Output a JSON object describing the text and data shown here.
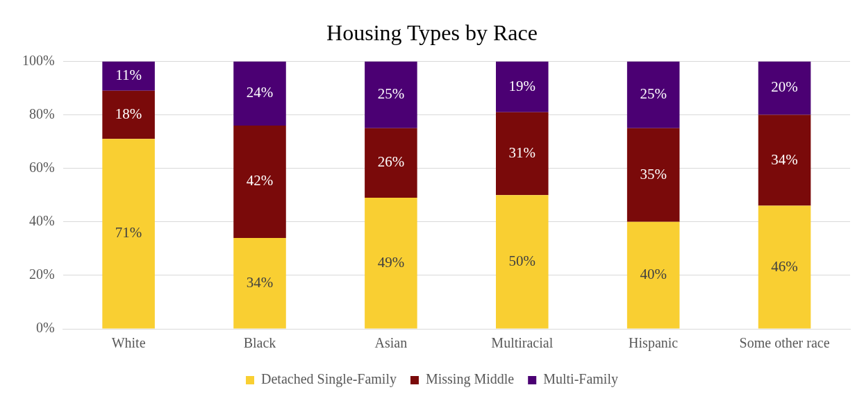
{
  "chart_data": {
    "type": "bar",
    "title": "Housing Types by Race",
    "stacked": true,
    "grid": "y",
    "legend": "bottom",
    "categories": [
      "White",
      "Black",
      "Asian",
      "Multiracial",
      "Hispanic",
      "Some other race"
    ],
    "ylim": [
      0,
      100
    ],
    "yticks": [
      {
        "value": 0,
        "label": "0%"
      },
      {
        "value": 20,
        "label": "20%"
      },
      {
        "value": 40,
        "label": "40%"
      },
      {
        "value": 60,
        "label": "60%"
      },
      {
        "value": 80,
        "label": "80%"
      },
      {
        "value": 100,
        "label": "100%"
      }
    ],
    "series": [
      {
        "name": "Detached Single-Family",
        "color": "#f9cf32",
        "values": [
          71,
          34,
          49,
          50,
          40,
          46
        ],
        "value_labels": [
          "71%",
          "34%",
          "49%",
          "50%",
          "40%",
          "46%"
        ]
      },
      {
        "name": "Missing Middle",
        "color": "#7a0a0a",
        "values": [
          18,
          42,
          26,
          31,
          35,
          34
        ],
        "value_labels": [
          "18%",
          "42%",
          "26%",
          "31%",
          "35%",
          "34%"
        ]
      },
      {
        "name": "Multi-Family",
        "color": "#4b0073",
        "values": [
          11,
          24,
          25,
          19,
          25,
          20
        ],
        "value_labels": [
          "11%",
          "24%",
          "25%",
          "19%",
          "25%",
          "20%"
        ]
      }
    ]
  }
}
